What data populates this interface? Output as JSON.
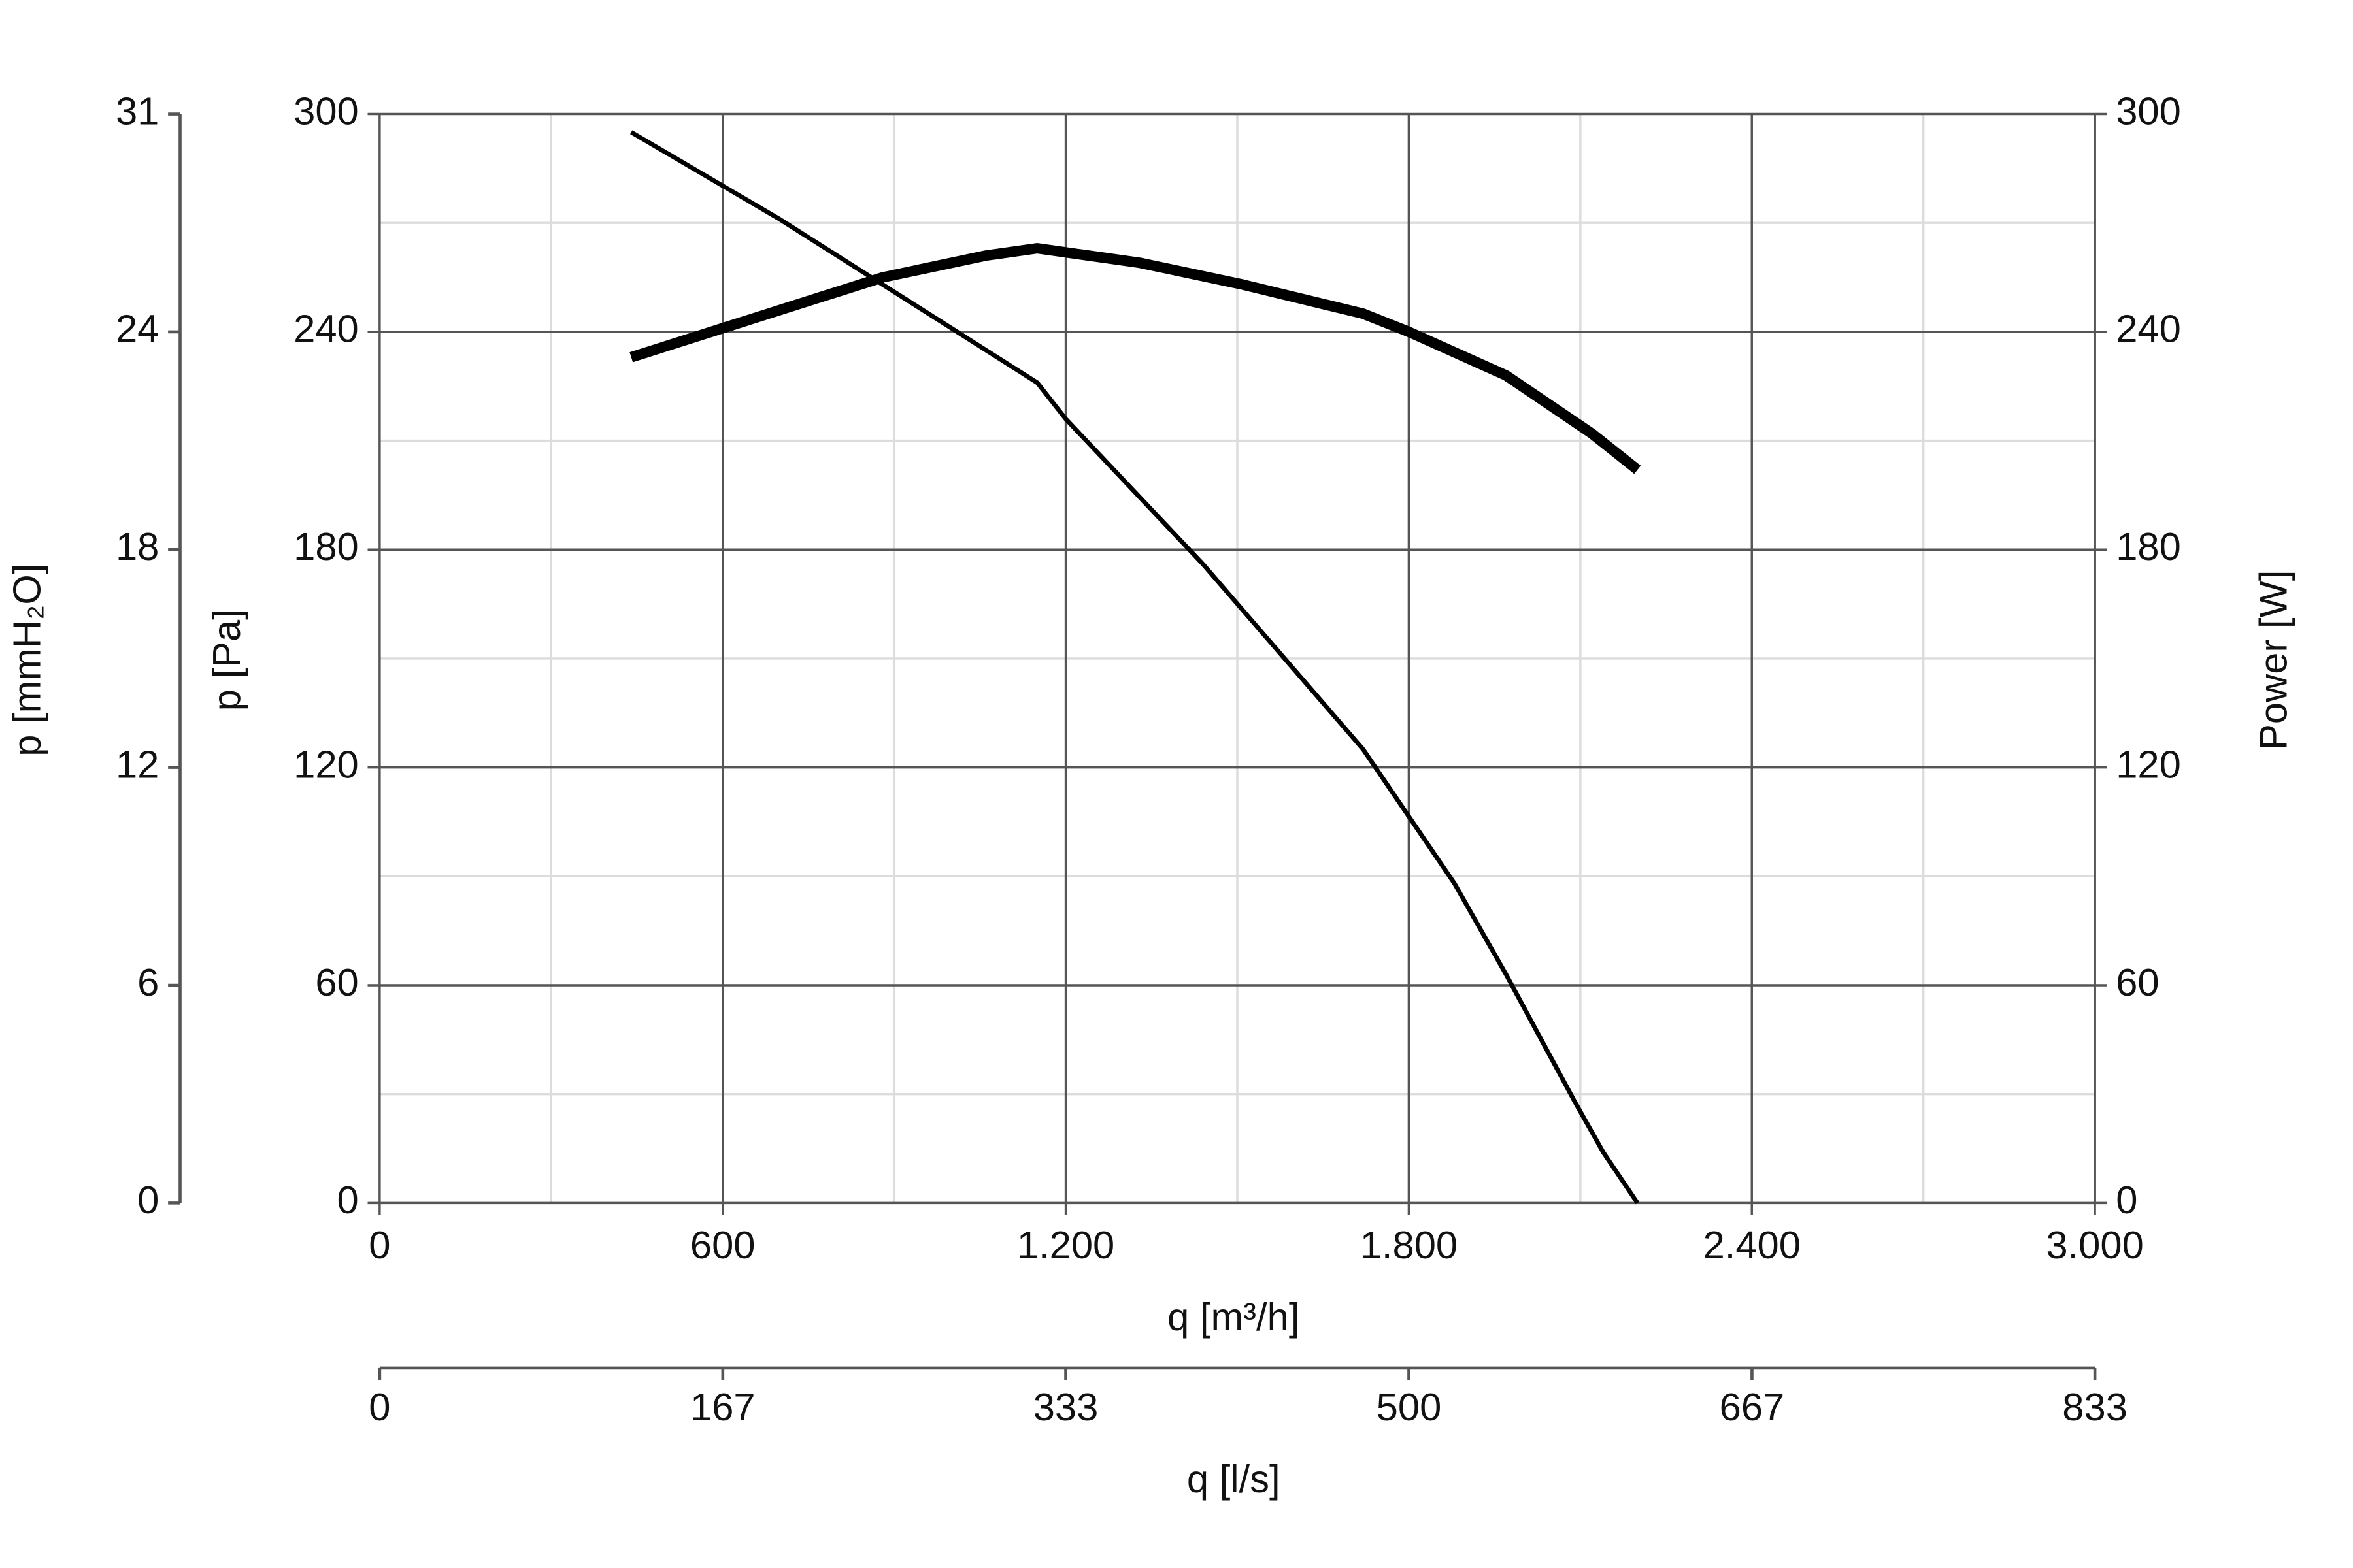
{
  "chart_data": {
    "type": "line",
    "xlabel": "q [m³/h]",
    "ylabel": "p [Pa]",
    "y2label": "Power [W]",
    "y3label": "p [mmH₂O]",
    "x2label": "q [l/s]",
    "xlim": [
      0,
      3000
    ],
    "xticks": [
      0,
      {
        "value": 600,
        "label": "600"
      },
      {
        "value": 1200,
        "label": "1.200"
      },
      {
        "value": 1800,
        "label": "1.800"
      },
      {
        "value": 2400,
        "label": "2.400"
      },
      {
        "value": 3000,
        "label": "3.000"
      }
    ],
    "xminor": [
      300,
      900,
      1500,
      2100,
      2700
    ],
    "ylim": [
      0,
      300
    ],
    "yticks": [
      0,
      60,
      120,
      180,
      240,
      300
    ],
    "yminor": [
      30,
      90,
      150,
      210,
      270
    ],
    "y2lim": [
      0,
      300
    ],
    "y2ticks": [
      0,
      60,
      120,
      180,
      240,
      300
    ],
    "y3lim": [
      0,
      30.6
    ],
    "y3ticks": [
      0,
      {
        "value": 6.12,
        "label": "6"
      },
      {
        "value": 12.24,
        "label": "12"
      },
      {
        "value": 18.36,
        "label": "18"
      },
      {
        "value": 24.48,
        "label": "24"
      },
      {
        "value": 30.6,
        "label": "31"
      }
    ],
    "x2lim": [
      0,
      833.3
    ],
    "x2ticks": [
      0,
      {
        "value": 166.7,
        "label": "167"
      },
      {
        "value": 333.3,
        "label": "333"
      },
      {
        "value": 500,
        "label": "500"
      },
      {
        "value": 666.7,
        "label": "667"
      },
      {
        "value": 833.3,
        "label": "833"
      }
    ],
    "grid": true,
    "series": [
      {
        "color": "#000000",
        "width": 3,
        "x": [
          440,
          700,
          1000,
          1150,
          1200,
          1440,
          1720,
          1880,
          1970,
          2090,
          2140,
          2200
        ],
        "values": [
          295,
          271,
          241,
          226,
          216,
          176,
          125,
          88,
          63,
          28,
          14,
          0
        ]
      },
      {
        "color": "#000000",
        "width": 7,
        "axis": "y2",
        "x": [
          440,
          600,
          880,
          1060,
          1150,
          1330,
          1510,
          1720,
          1800,
          1970,
          2120,
          2200
        ],
        "values": [
          233,
          241,
          255,
          261,
          263,
          259,
          253,
          245,
          240,
          228,
          212,
          202
        ]
      }
    ]
  }
}
